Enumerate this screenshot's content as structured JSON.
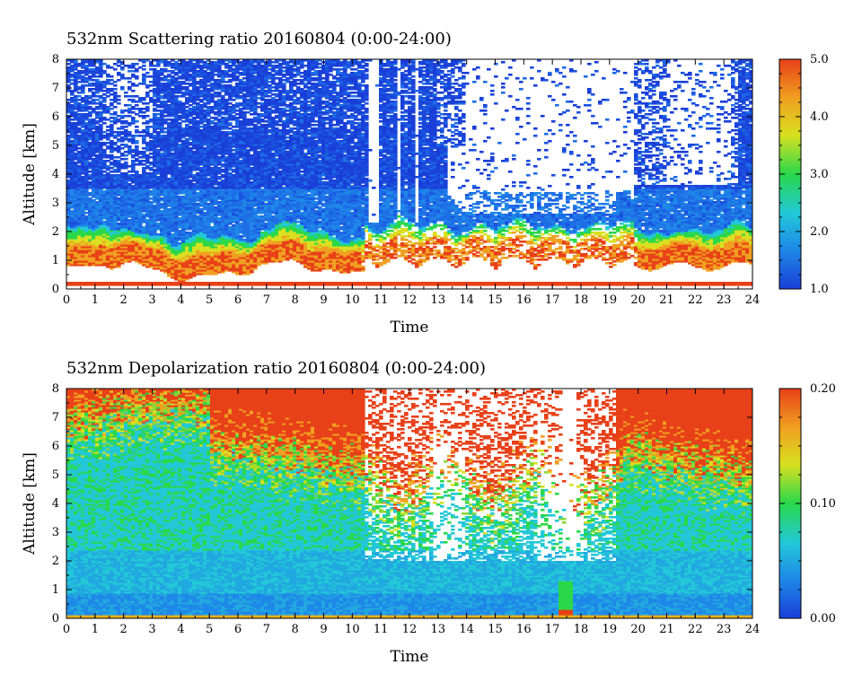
{
  "chart_data": [
    {
      "type": "heatmap",
      "title": "532nm Scattering ratio  20160804 (0:00-24:00)",
      "xlabel": "Time",
      "ylabel": "Altitude [km]",
      "xlim": [
        0,
        24
      ],
      "ylim": [
        0,
        8
      ],
      "x_ticks": [
        0,
        1,
        2,
        3,
        4,
        5,
        6,
        7,
        8,
        9,
        10,
        11,
        12,
        13,
        14,
        15,
        16,
        17,
        18,
        19,
        20,
        21,
        22,
        23,
        24
      ],
      "y_ticks": [
        0,
        1,
        2,
        3,
        4,
        5,
        6,
        7,
        8
      ],
      "colorbar": {
        "min": 1.0,
        "max": 5.0,
        "ticks": [
          "1.0",
          "2.0",
          "3.0",
          "4.0",
          "5.0"
        ]
      },
      "colormap": [
        "#1a3fd8",
        "#1e88e8",
        "#22c8d8",
        "#2ad84a",
        "#d8e020",
        "#f0a020",
        "#e84018"
      ]
    },
    {
      "type": "heatmap",
      "title": "532nm Depolarization ratio  20160804 (0:00-24:00)",
      "xlabel": "Time",
      "ylabel": "Altitude [km]",
      "xlim": [
        0,
        24
      ],
      "ylim": [
        0,
        8
      ],
      "x_ticks": [
        0,
        1,
        2,
        3,
        4,
        5,
        6,
        7,
        8,
        9,
        10,
        11,
        12,
        13,
        14,
        15,
        16,
        17,
        18,
        19,
        20,
        21,
        22,
        23,
        24
      ],
      "y_ticks": [
        0,
        1,
        2,
        3,
        4,
        5,
        6,
        7,
        8
      ],
      "colorbar": {
        "min": 0.0,
        "max": 0.2,
        "ticks": [
          "0.00",
          "0.10",
          "0.20"
        ]
      },
      "colormap": [
        "#1a3fd8",
        "#1e88e8",
        "#22c8d8",
        "#2ad84a",
        "#d8e020",
        "#f0a020",
        "#e84018"
      ]
    }
  ]
}
